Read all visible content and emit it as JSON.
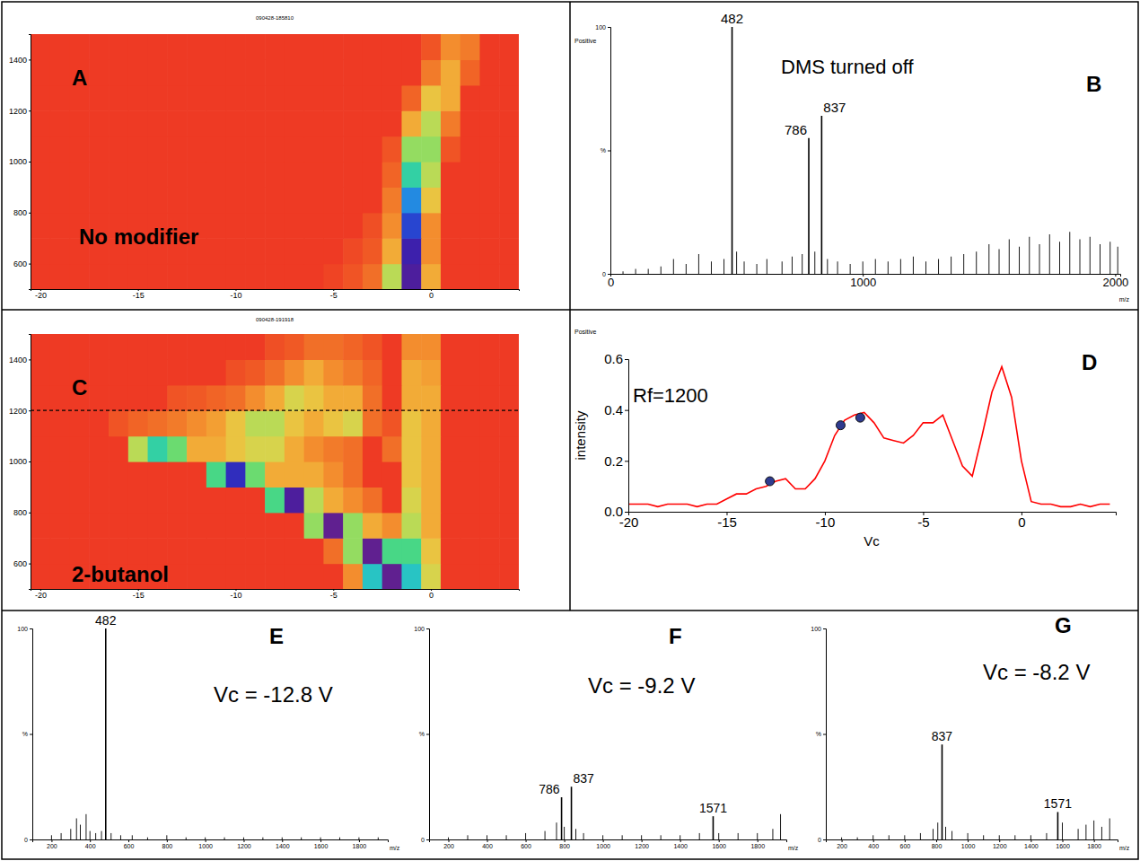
{
  "chart_data": [
    {
      "type": "heatmap",
      "label": "A",
      "title": "090428-185810",
      "annotation": "No modifier",
      "x": [
        -20,
        -19,
        -18,
        -17,
        -16,
        -15,
        -14,
        -13,
        -12,
        -11,
        -10,
        -9,
        -8,
        -7,
        -6,
        -5,
        -4,
        -3,
        -2,
        -1,
        0,
        1,
        2,
        3,
        4
      ],
      "y": [
        550,
        650,
        750,
        850,
        950,
        1050,
        1150,
        1250,
        1350,
        1450
      ],
      "z": [
        [
          0,
          0,
          0,
          0,
          0,
          0,
          0,
          0,
          0,
          0,
          0,
          0,
          0,
          0,
          0,
          0.02,
          0.05,
          0.1,
          0.35,
          0.95,
          0.2,
          0,
          0,
          0,
          0
        ],
        [
          0,
          0,
          0,
          0,
          0,
          0,
          0,
          0,
          0,
          0,
          0,
          0,
          0,
          0,
          0,
          0,
          0.03,
          0.06,
          0.2,
          0.9,
          0.15,
          0,
          0,
          0,
          0
        ],
        [
          0,
          0,
          0,
          0,
          0,
          0,
          0,
          0,
          0,
          0,
          0,
          0,
          0,
          0,
          0,
          0,
          0,
          0.04,
          0.15,
          0.8,
          0.15,
          0,
          0,
          0,
          0
        ],
        [
          0,
          0,
          0,
          0,
          0,
          0,
          0,
          0,
          0,
          0,
          0,
          0,
          0,
          0,
          0,
          0,
          0,
          0,
          0.12,
          0.7,
          0.25,
          0,
          0,
          0,
          0
        ],
        [
          0,
          0,
          0,
          0,
          0,
          0,
          0,
          0,
          0,
          0,
          0,
          0,
          0,
          0,
          0,
          0,
          0,
          0,
          0.08,
          0.55,
          0.35,
          0,
          0,
          0,
          0
        ],
        [
          0,
          0,
          0,
          0,
          0,
          0,
          0,
          0,
          0,
          0,
          0,
          0,
          0,
          0,
          0,
          0,
          0,
          0,
          0.05,
          0.4,
          0.4,
          0.05,
          0,
          0,
          0
        ],
        [
          0,
          0,
          0,
          0,
          0,
          0,
          0,
          0,
          0,
          0,
          0,
          0,
          0,
          0,
          0,
          0,
          0,
          0,
          0,
          0.2,
          0.35,
          0.12,
          0,
          0,
          0
        ],
        [
          0,
          0,
          0,
          0,
          0,
          0,
          0,
          0,
          0,
          0,
          0,
          0,
          0,
          0,
          0,
          0,
          0,
          0,
          0,
          0.08,
          0.25,
          0.2,
          0,
          0,
          0
        ],
        [
          0,
          0,
          0,
          0,
          0,
          0,
          0,
          0,
          0,
          0,
          0,
          0,
          0,
          0,
          0,
          0,
          0,
          0,
          0,
          0,
          0.12,
          0.2,
          0.08,
          0,
          0
        ],
        [
          0,
          0,
          0,
          0,
          0,
          0,
          0,
          0,
          0,
          0,
          0,
          0,
          0,
          0,
          0,
          0,
          0,
          0,
          0,
          0,
          0.05,
          0.15,
          0.12,
          0,
          0
        ]
      ],
      "zlim": [
        0,
        1
      ],
      "xlim": [
        -20.5,
        4.5
      ],
      "ylim": [
        500,
        1500
      ],
      "xticks": [
        -20,
        -15,
        -10,
        -5,
        0
      ],
      "yticks": [
        600,
        800,
        1000,
        1200,
        1400
      ]
    },
    {
      "type": "stem",
      "label": "B",
      "polarity": "Positive",
      "annotation": "DMS turned off",
      "x_label": "m/z",
      "color": "#000000",
      "x": [
        50,
        100,
        150,
        200,
        250,
        300,
        350,
        400,
        450,
        500,
        530,
        580,
        620,
        680,
        720,
        760,
        810,
        860,
        900,
        950,
        1000,
        1050,
        1100,
        1150,
        1200,
        1250,
        1300,
        1350,
        1400,
        1450,
        1500,
        1540,
        1580,
        1620,
        1660,
        1700,
        1740,
        1780,
        1820,
        1860,
        1900,
        1940,
        1980,
        2010
      ],
      "values": [
        1,
        2,
        2,
        3,
        6,
        4,
        8,
        5,
        6,
        9,
        5,
        4,
        6,
        5,
        7,
        8,
        9,
        6,
        5,
        4,
        5,
        6,
        5,
        6,
        7,
        5,
        6,
        7,
        8,
        9,
        12,
        10,
        14,
        11,
        15,
        12,
        16,
        13,
        17,
        14,
        15,
        12,
        13,
        11
      ],
      "peaks": {
        "x": [
          482,
          786,
          837
        ],
        "values": [
          100,
          55,
          64
        ]
      },
      "xlim": [
        0,
        2020
      ],
      "ylim": [
        0,
        100
      ],
      "xticks": [
        0,
        1000,
        2000
      ],
      "yticks": [
        0,
        {
          "value": 50,
          "label": "%"
        },
        100
      ]
    },
    {
      "type": "heatmap",
      "label": "C",
      "title": "090428-191918",
      "annotation": "2-butanol",
      "reference_line": 1200,
      "x": [
        -20,
        -19,
        -18,
        -17,
        -16,
        -15,
        -14,
        -13,
        -12,
        -11,
        -10,
        -9,
        -8,
        -7,
        -6,
        -5,
        -4,
        -3,
        -2,
        -1,
        0,
        1,
        2,
        3,
        4
      ],
      "y": [
        550,
        650,
        750,
        850,
        950,
        1050,
        1150,
        1250,
        1350,
        1450
      ],
      "z": [
        [
          0,
          0,
          0,
          0,
          0,
          0,
          0,
          0,
          0,
          0,
          0,
          0,
          0,
          0,
          0,
          0,
          0.15,
          0.6,
          1.0,
          0.6,
          0.3,
          0,
          0,
          0,
          0
        ],
        [
          0,
          0,
          0,
          0,
          0,
          0,
          0,
          0,
          0,
          0,
          0,
          0,
          0,
          0,
          0,
          0.1,
          0.4,
          1.0,
          0.5,
          0.5,
          0.25,
          0,
          0,
          0,
          0
        ],
        [
          0,
          0,
          0,
          0,
          0,
          0,
          0,
          0,
          0,
          0,
          0,
          0,
          0,
          0,
          0.4,
          1.0,
          0.4,
          0.2,
          0.15,
          0.35,
          0.2,
          0,
          0,
          0,
          0
        ],
        [
          0,
          0,
          0,
          0,
          0,
          0,
          0,
          0,
          0,
          0,
          0,
          0,
          0.5,
          0.95,
          0.35,
          0.2,
          0.15,
          0.1,
          0,
          0.3,
          0.2,
          0,
          0,
          0,
          0
        ],
        [
          0,
          0,
          0,
          0,
          0,
          0,
          0,
          0,
          0,
          0.5,
          0.85,
          0.45,
          0.2,
          0.2,
          0.2,
          0.15,
          0.1,
          0,
          0,
          0.25,
          0.2,
          0,
          0,
          0,
          0
        ],
        [
          0,
          0,
          0,
          0,
          0,
          0.35,
          0.55,
          0.45,
          0.2,
          0.2,
          0.25,
          0.3,
          0.3,
          0.2,
          0.15,
          0.12,
          0.1,
          0,
          0.1,
          0.25,
          0.2,
          0,
          0,
          0,
          0
        ],
        [
          0,
          0,
          0,
          0,
          0.05,
          0.08,
          0.1,
          0.12,
          0.15,
          0.18,
          0.25,
          0.35,
          0.35,
          0.25,
          0.2,
          0.25,
          0.3,
          0.1,
          0.05,
          0.25,
          0.2,
          0,
          0,
          0,
          0
        ],
        [
          0,
          0,
          0,
          0,
          0,
          0,
          0,
          0.05,
          0.06,
          0.08,
          0.1,
          0.15,
          0.2,
          0.3,
          0.25,
          0.2,
          0.2,
          0.1,
          0,
          0.2,
          0.2,
          0,
          0,
          0,
          0
        ],
        [
          0,
          0,
          0,
          0,
          0,
          0,
          0,
          0,
          0,
          0,
          0.04,
          0.06,
          0.1,
          0.15,
          0.2,
          0.15,
          0.12,
          0.08,
          0,
          0.2,
          0.18,
          0,
          0,
          0,
          0
        ],
        [
          0,
          0,
          0,
          0,
          0,
          0,
          0,
          0,
          0,
          0,
          0,
          0,
          0.04,
          0.06,
          0.1,
          0.1,
          0.08,
          0.05,
          0,
          0.15,
          0.15,
          0,
          0,
          0,
          0
        ]
      ],
      "zlim": [
        0,
        1
      ],
      "xlim": [
        -20.5,
        4.5
      ],
      "ylim": [
        500,
        1500
      ],
      "xticks": [
        -20,
        -15,
        -10,
        -5,
        0
      ],
      "yticks": [
        600,
        800,
        1000,
        1200,
        1400
      ]
    },
    {
      "type": "line",
      "label": "D",
      "polarity": "Positive",
      "annotation": "Rf=1200",
      "x_label": "Vc",
      "y_label": "intensity",
      "x": [
        -20,
        -19.5,
        -19,
        -18.5,
        -18,
        -17.5,
        -17,
        -16.5,
        -16,
        -15.5,
        -15,
        -14.5,
        -14,
        -13.5,
        -13,
        -12.5,
        -12,
        -11.5,
        -11,
        -10.5,
        -10,
        -9.5,
        -9,
        -8.5,
        -8,
        -7.5,
        -7,
        -6.5,
        -6,
        -5.5,
        -5,
        -4.5,
        -4,
        -3.5,
        -3,
        -2.5,
        -2,
        -1.5,
        -1,
        -0.5,
        0,
        0.5,
        1,
        1.5,
        2,
        2.5,
        3,
        3.5,
        4,
        4.5
      ],
      "series": [
        {
          "color": "#ff0000",
          "values": [
            0.03,
            0.03,
            0.03,
            0.02,
            0.03,
            0.03,
            0.03,
            0.02,
            0.03,
            0.03,
            0.05,
            0.07,
            0.07,
            0.09,
            0.1,
            0.12,
            0.13,
            0.09,
            0.09,
            0.13,
            0.2,
            0.3,
            0.36,
            0.38,
            0.39,
            0.35,
            0.29,
            0.28,
            0.27,
            0.3,
            0.35,
            0.35,
            0.38,
            0.28,
            0.18,
            0.14,
            0.3,
            0.47,
            0.57,
            0.45,
            0.2,
            0.04,
            0.03,
            0.03,
            0.02,
            0.02,
            0.03,
            0.02,
            0.03,
            0.03
          ]
        },
        {
          "type": "scatter",
          "marker": "circle",
          "color": "#2e3b8f",
          "x": [
            -12.8,
            -9.2,
            -8.2
          ],
          "values": [
            0.12,
            0.34,
            0.37
          ]
        }
      ],
      "xlim": [
        -20,
        4.8
      ],
      "ylim": [
        0,
        0.6
      ],
      "xticks": [
        -20,
        -15,
        -10,
        -5,
        0
      ],
      "yticks": [
        {
          "value": 0,
          "label": "0.0"
        },
        0.2,
        0.4,
        0.6
      ]
    },
    {
      "type": "stem",
      "label": "E",
      "annotation": "Vc = -12.8 V",
      "x_label": "m/z",
      "color": "#000000",
      "x": [
        200,
        250,
        300,
        330,
        350,
        380,
        400,
        430,
        460,
        510,
        560,
        620,
        700,
        800,
        900,
        1000,
        1100,
        1200,
        1300,
        1400,
        1500,
        1600,
        1700,
        1800,
        1900
      ],
      "values": [
        2,
        3,
        5,
        10,
        7,
        12,
        4,
        3,
        4,
        3,
        2,
        2,
        1,
        2,
        1,
        1,
        1,
        1,
        1,
        1,
        1,
        1,
        1,
        1,
        1
      ],
      "peaks": {
        "x": [
          482
        ],
        "values": [
          100
        ]
      },
      "xlim": [
        100,
        1950
      ],
      "ylim": [
        0,
        100
      ],
      "xticks": [
        200,
        400,
        600,
        800,
        1000,
        1200,
        1400,
        1600,
        1800
      ],
      "yticks": [
        0,
        {
          "value": 50,
          "label": "%"
        },
        100
      ]
    },
    {
      "type": "stem",
      "label": "F",
      "annotation": "Vc = -9.2 V",
      "x_label": "m/z",
      "color": "#000000",
      "x": [
        200,
        300,
        400,
        500,
        600,
        700,
        760,
        800,
        860,
        900,
        1000,
        1100,
        1200,
        1300,
        1400,
        1500,
        1600,
        1700,
        1800,
        1880,
        1920
      ],
      "values": [
        1,
        2,
        2,
        2,
        3,
        4,
        8,
        6,
        5,
        3,
        2,
        2,
        2,
        2,
        2,
        3,
        3,
        3,
        3,
        5,
        12
      ],
      "peaks": {
        "x": [
          786,
          837,
          1571
        ],
        "values": [
          20,
          25,
          11
        ]
      },
      "xlim": [
        100,
        1950
      ],
      "ylim": [
        0,
        100
      ],
      "xticks": [
        200,
        400,
        600,
        800,
        1000,
        1200,
        1400,
        1600,
        1800
      ],
      "yticks": [
        0,
        {
          "value": 50,
          "label": "%"
        },
        100
      ]
    },
    {
      "type": "stem",
      "label": "G",
      "annotation": "Vc = -8.2 V",
      "x_label": "m/z",
      "color": "#000000",
      "x": [
        200,
        300,
        400,
        500,
        600,
        700,
        780,
        810,
        860,
        900,
        1000,
        1100,
        1200,
        1300,
        1400,
        1500,
        1600,
        1700,
        1750,
        1800,
        1850,
        1900
      ],
      "values": [
        1,
        1,
        2,
        2,
        2,
        3,
        5,
        8,
        6,
        4,
        3,
        2,
        2,
        2,
        2,
        3,
        8,
        5,
        7,
        9,
        6,
        10
      ],
      "peaks": {
        "x": [
          837,
          1571
        ],
        "values": [
          45,
          13
        ]
      },
      "xlim": [
        100,
        1950
      ],
      "ylim": [
        0,
        100
      ],
      "xticks": [
        200,
        400,
        600,
        800,
        1000,
        1200,
        1400,
        1600,
        1800
      ],
      "yticks": [
        0,
        {
          "value": 50,
          "label": "%"
        },
        100
      ]
    }
  ]
}
